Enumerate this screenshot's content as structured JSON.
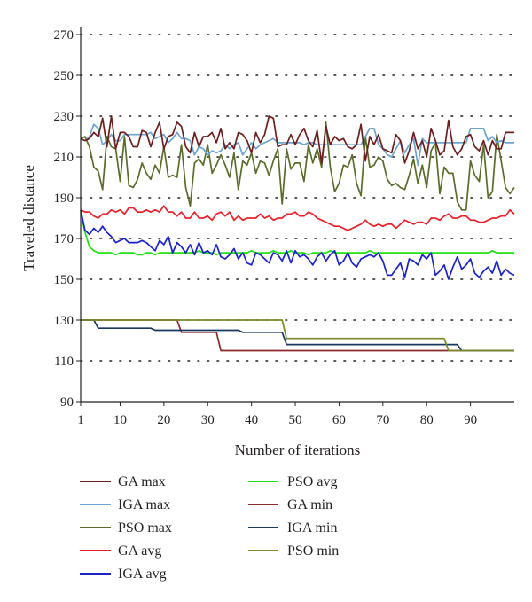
{
  "chart_data": {
    "type": "line",
    "title": "",
    "xlabel": "Number of iterations",
    "ylabel": "Traveled distance",
    "xlim": [
      1,
      100
    ],
    "ylim": [
      90,
      270
    ],
    "x_ticks": [
      1,
      10,
      20,
      30,
      40,
      50,
      60,
      70,
      80,
      90
    ],
    "y_ticks": [
      90,
      110,
      130,
      150,
      170,
      190,
      210,
      230,
      250,
      270
    ],
    "grid": "dotted horizontal",
    "legend_placement": "below",
    "series": [
      {
        "name": "GA max",
        "color": "#6b1f1f",
        "values": [
          219,
          218,
          219,
          222,
          220,
          229,
          215,
          230,
          214,
          222,
          222,
          220,
          215,
          215,
          223,
          222,
          215,
          222,
          227,
          214,
          220,
          221,
          227,
          225,
          215,
          212,
          222,
          215,
          220,
          220,
          222,
          217,
          224,
          214,
          217,
          214,
          222,
          221,
          218,
          212,
          222,
          217,
          221,
          230,
          229,
          215,
          216,
          216,
          221,
          216,
          221,
          224,
          218,
          215,
          223,
          207,
          225,
          216,
          220,
          218,
          219,
          215,
          214,
          216,
          226,
          208,
          220,
          216,
          221,
          214,
          213,
          212,
          221,
          218,
          207,
          213,
          222,
          214,
          218,
          210,
          224,
          218,
          211,
          213,
          228,
          215,
          211,
          214,
          220,
          221,
          215,
          213,
          218,
          211,
          218,
          214,
          214,
          222,
          222,
          222
        ]
      },
      {
        "name": "IGA max",
        "color": "#6ea3cf",
        "values": [
          219,
          218,
          220,
          226,
          224,
          216,
          218,
          221,
          218,
          218,
          221,
          221,
          221,
          221,
          221,
          221,
          222,
          219,
          220,
          221,
          217,
          219,
          222,
          219,
          219,
          218,
          211,
          215,
          214,
          211,
          213,
          212,
          213,
          216,
          214,
          216,
          217,
          211,
          214,
          217,
          214,
          216,
          217,
          218,
          219,
          217,
          217,
          217,
          217,
          217,
          217,
          216,
          217,
          217,
          216,
          216,
          216,
          216,
          216,
          216,
          216,
          216,
          216,
          216,
          216,
          220,
          224,
          224,
          216,
          214,
          211,
          210,
          214,
          218,
          212,
          216,
          219,
          206,
          219,
          217,
          217,
          217,
          217,
          217,
          217,
          217,
          217,
          217,
          217,
          224,
          224,
          224,
          224,
          218,
          220,
          217,
          218,
          217,
          217,
          217
        ]
      },
      {
        "name": "PSO max",
        "color": "#5a6b2b",
        "values": [
          219,
          220,
          215,
          205,
          203,
          194,
          220,
          215,
          214,
          198,
          220,
          196,
          195,
          199,
          207,
          202,
          199,
          206,
          202,
          215,
          200,
          201,
          200,
          216,
          195,
          186,
          207,
          209,
          206,
          216,
          202,
          206,
          211,
          206,
          200,
          212,
          194,
          208,
          206,
          212,
          202,
          208,
          207,
          201,
          208,
          214,
          187,
          214,
          204,
          207,
          207,
          198,
          216,
          207,
          214,
          205,
          227,
          205,
          193,
          197,
          206,
          205,
          211,
          197,
          191,
          220,
          205,
          206,
          210,
          208,
          199,
          196,
          197,
          195,
          194,
          201,
          209,
          197,
          206,
          195,
          213,
          217,
          192,
          205,
          202,
          202,
          188,
          184,
          184,
          208,
          201,
          198,
          216,
          190,
          193,
          221,
          208,
          195,
          192,
          195
        ]
      },
      {
        "name": "GA avg",
        "color": "#e8202a",
        "values": [
          184,
          183,
          183,
          181,
          180,
          182,
          182,
          184,
          183,
          184,
          182,
          185,
          185,
          183,
          183,
          184,
          183,
          184,
          183,
          186,
          183,
          183,
          181,
          183,
          180,
          180,
          183,
          180,
          180,
          181,
          179,
          182,
          183,
          181,
          183,
          179,
          181,
          179,
          180,
          180,
          180,
          182,
          180,
          181,
          179,
          180,
          180,
          182,
          182,
          183,
          181,
          181,
          183,
          182,
          180,
          179,
          178,
          177,
          176,
          176,
          175,
          174,
          175,
          176,
          177,
          179,
          177,
          176,
          177,
          176,
          177,
          177,
          175,
          177,
          179,
          178,
          177,
          178,
          178,
          177,
          180,
          180,
          179,
          181,
          182,
          180,
          180,
          181,
          181,
          179,
          179,
          178,
          178,
          179,
          180,
          180,
          181,
          181,
          184,
          182
        ]
      },
      {
        "name": "IGA avg",
        "color": "#1a22c8",
        "values": [
          184,
          174,
          172,
          175,
          173,
          176,
          173,
          171,
          168,
          169,
          170,
          168,
          168,
          168,
          169,
          168,
          166,
          164,
          169,
          167,
          171,
          163,
          168,
          166,
          163,
          167,
          162,
          168,
          163,
          164,
          162,
          167,
          161,
          160,
          162,
          165,
          160,
          163,
          158,
          157,
          163,
          162,
          160,
          158,
          163,
          162,
          159,
          164,
          158,
          164,
          161,
          162,
          160,
          157,
          161,
          163,
          159,
          162,
          164,
          157,
          159,
          163,
          158,
          156,
          160,
          161,
          162,
          161,
          163,
          159,
          152,
          152,
          155,
          158,
          151,
          160,
          159,
          157,
          162,
          160,
          163,
          152,
          154,
          157,
          150,
          156,
          161,
          155,
          157,
          160,
          153,
          151,
          154,
          156,
          153,
          159,
          152,
          155,
          153,
          152
        ]
      },
      {
        "name": "PSO avg",
        "color": "#22e017",
        "values": [
          183,
          173,
          166,
          164,
          163,
          163,
          163,
          163,
          162,
          163,
          163,
          163,
          163,
          162,
          162,
          163,
          163,
          162,
          163,
          163,
          163,
          163,
          163,
          163,
          163,
          163,
          163,
          164,
          163,
          163,
          163,
          162,
          163,
          163,
          163,
          163,
          163,
          163,
          163,
          164,
          163,
          163,
          163,
          163,
          164,
          163,
          163,
          163,
          164,
          163,
          163,
          163,
          162,
          163,
          163,
          163,
          163,
          164,
          163,
          163,
          163,
          163,
          163,
          163,
          163,
          163,
          164,
          163,
          163,
          163,
          163,
          163,
          163,
          163,
          163,
          163,
          163,
          163,
          163,
          163,
          163,
          163,
          163,
          163,
          163,
          163,
          163,
          163,
          163,
          163,
          163,
          163,
          163,
          163,
          164,
          163,
          163,
          163,
          163,
          163
        ]
      },
      {
        "name": "GA min",
        "color": "#8a2a2a",
        "values": [
          130,
          130,
          130,
          130,
          130,
          130,
          130,
          130,
          130,
          130,
          130,
          130,
          130,
          130,
          130,
          130,
          130,
          130,
          130,
          130,
          130,
          130,
          130,
          124,
          124,
          124,
          124,
          124,
          124,
          124,
          124,
          124,
          115,
          115,
          115,
          115,
          115,
          115,
          115,
          115,
          115,
          115,
          115,
          115,
          115,
          115,
          115,
          115,
          115,
          115,
          115,
          115,
          115,
          115,
          115,
          115,
          115,
          115,
          115,
          115,
          115,
          115,
          115,
          115,
          115,
          115,
          115,
          115,
          115,
          115,
          115,
          115,
          115,
          115,
          115,
          115,
          115,
          115,
          115,
          115,
          115,
          115,
          115,
          115,
          115,
          115,
          115,
          115,
          115,
          115,
          115,
          115,
          115,
          115,
          115,
          115,
          115,
          115,
          115,
          115
        ]
      },
      {
        "name": "IGA min",
        "color": "#17385c",
        "values": [
          130,
          130,
          130,
          130,
          126,
          126,
          126,
          126,
          126,
          126,
          126,
          126,
          126,
          126,
          126,
          126,
          126,
          125,
          125,
          125,
          125,
          125,
          125,
          125,
          125,
          125,
          125,
          125,
          125,
          125,
          125,
          125,
          125,
          125,
          125,
          125,
          125,
          124,
          124,
          124,
          124,
          124,
          124,
          124,
          124,
          124,
          124,
          118,
          118,
          118,
          118,
          118,
          118,
          118,
          118,
          118,
          118,
          118,
          118,
          118,
          118,
          118,
          118,
          118,
          118,
          118,
          118,
          118,
          118,
          118,
          118,
          118,
          118,
          118,
          118,
          118,
          118,
          118,
          118,
          118,
          118,
          118,
          118,
          118,
          118,
          118,
          118,
          115,
          115,
          115,
          115,
          115,
          115,
          115,
          115,
          115,
          115,
          115,
          115,
          115
        ]
      },
      {
        "name": "PSO min",
        "color": "#7c8a2c",
        "values": [
          130,
          130,
          130,
          130,
          130,
          130,
          130,
          130,
          130,
          130,
          130,
          130,
          130,
          130,
          130,
          130,
          130,
          130,
          130,
          130,
          130,
          130,
          130,
          130,
          130,
          130,
          130,
          130,
          130,
          130,
          130,
          130,
          130,
          130,
          130,
          130,
          130,
          130,
          130,
          130,
          130,
          130,
          130,
          130,
          130,
          130,
          130,
          121,
          121,
          121,
          121,
          121,
          121,
          121,
          121,
          121,
          121,
          121,
          121,
          121,
          121,
          121,
          121,
          121,
          121,
          121,
          121,
          121,
          121,
          121,
          121,
          121,
          121,
          121,
          121,
          121,
          121,
          121,
          121,
          121,
          121,
          121,
          121,
          121,
          115,
          115,
          115,
          115,
          115,
          115,
          115,
          115,
          115,
          115,
          115,
          115,
          115,
          115,
          115,
          115
        ]
      }
    ]
  }
}
